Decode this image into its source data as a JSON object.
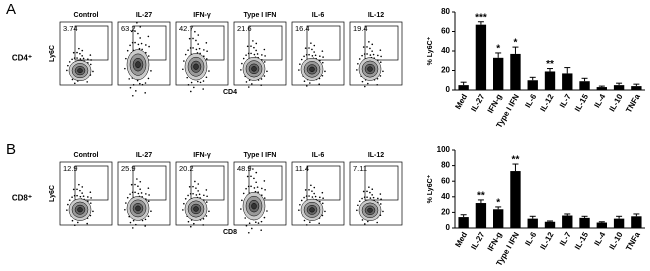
{
  "figure": {
    "panels": [
      {
        "letter": "A",
        "row_label": "CD4⁺",
        "y_label": "Ly6C",
        "x_label": "CD4",
        "conditions": [
          "Control",
          "IL-27",
          "IFN-γ",
          "Type I IFN",
          "IL-6",
          "IL-12"
        ],
        "percentages": [
          3.74,
          63.2,
          42.7,
          21.6,
          16.4,
          19.4
        ]
      },
      {
        "letter": "B",
        "row_label": "CD8⁺",
        "y_label": "Ly6C",
        "x_label": "CD8",
        "conditions": [
          "Control",
          "IL-27",
          "IFN-γ",
          "Type I IFN",
          "IL-6",
          "IL-12"
        ],
        "percentages": [
          12.9,
          25.9,
          20.2,
          48.9,
          11.4,
          7.11
        ]
      }
    ]
  },
  "chart_data": [
    {
      "type": "bar",
      "y_label": "% Ly6C⁺",
      "categories": [
        "Med",
        "IL-27",
        "IFN-g",
        "Type I IFN",
        "IL-6",
        "IL-12",
        "IL-7",
        "IL-15",
        "IL-4",
        "IL-10",
        "TNFa"
      ],
      "values": [
        5,
        67,
        33,
        37,
        10,
        19,
        17,
        9,
        3,
        5,
        4
      ],
      "errors": [
        3,
        3,
        5,
        7,
        3,
        3,
        6,
        3,
        1,
        2,
        2
      ],
      "color": "#000000",
      "ylim": [
        0,
        80
      ],
      "yticks": [
        0,
        20,
        40,
        60,
        80
      ],
      "annotations": [
        {
          "label": "***",
          "category": "IL-27"
        },
        {
          "label": "*",
          "category": "IFN-g"
        },
        {
          "label": "*",
          "category": "Type I IFN"
        },
        {
          "label": "**",
          "category": "IL-12"
        }
      ]
    },
    {
      "type": "bar",
      "y_label": "% Ly6C⁺",
      "categories": [
        "Med",
        "IL-27",
        "IFN-g",
        "Type I IFN",
        "IL-6",
        "IL-12",
        "IL-7",
        "IL-15",
        "IL-4",
        "IL-10",
        "TNFa"
      ],
      "values": [
        14,
        32,
        24,
        73,
        12,
        8,
        16,
        13,
        7,
        12,
        15
      ],
      "errors": [
        3,
        4,
        3,
        9,
        3,
        1,
        2,
        2,
        1,
        3,
        3
      ],
      "color": "#000000",
      "ylim": [
        0,
        100
      ],
      "yticks": [
        0,
        20,
        40,
        60,
        80,
        100
      ],
      "annotations": [
        {
          "label": "**",
          "category": "IL-27"
        },
        {
          "label": "*",
          "category": "IFN-g"
        },
        {
          "label": "**",
          "category": "Type I IFN"
        }
      ]
    }
  ]
}
